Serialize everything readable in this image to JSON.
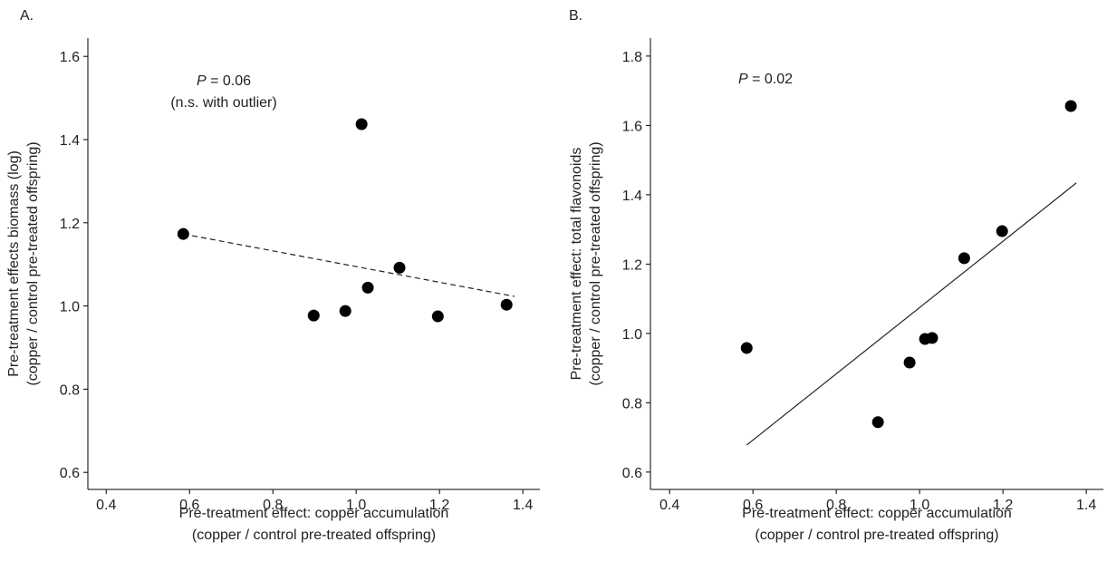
{
  "chart_data": [
    {
      "type": "scatter",
      "panel_label": "A.",
      "xlabel": [
        "Pre-treatment effect: copper accumulation",
        "(copper / control pre-treated offspring)"
      ],
      "ylabel": [
        "Pre-treatment effects biomass (log)",
        "(copper / control pre-treated offspring)"
      ],
      "annotations": [
        {
          "italic": "P",
          "text": " = 0.06"
        },
        {
          "text": "(n.s. with outlier)"
        }
      ],
      "x": [
        0.585,
        0.898,
        0.974,
        1.013,
        1.028,
        1.104,
        1.196,
        1.361
      ],
      "y": [
        1.173,
        0.977,
        0.988,
        1.437,
        1.044,
        1.092,
        0.975,
        1.003
      ],
      "color": "#000000",
      "fit_x": [
        0.585,
        1.38
      ],
      "fit_y": [
        1.173,
        1.023
      ],
      "fit_style": "dashed",
      "xlim": [
        0.356,
        1.441
      ],
      "ylim": [
        0.559,
        1.644
      ],
      "xticks": [
        0.4,
        0.6,
        0.8,
        {
          "value": 1,
          "label": "1.0"
        },
        1.2,
        1.4
      ],
      "yticks": [
        0.6,
        0.8,
        {
          "value": 1,
          "label": "1.0"
        },
        1.2,
        1.4,
        1.6
      ]
    },
    {
      "type": "scatter",
      "panel_label": "B.",
      "xlabel": [
        "Pre-treatment effect: copper accumulation",
        "(copper / control pre-treated offspring)"
      ],
      "ylabel": [
        "Pre-treatment effect: total flavonoids",
        "(copper / control pre-treated offspring)"
      ],
      "annotations": [
        {
          "italic": "P",
          "text": " = 0.02"
        }
      ],
      "x": [
        0.585,
        0.9,
        0.976,
        1.013,
        1.03,
        1.107,
        1.198,
        1.363
      ],
      "y": [
        0.958,
        0.744,
        0.916,
        0.984,
        0.987,
        1.217,
        1.295,
        1.656
      ],
      "color": "#000000",
      "fit_x": [
        0.585,
        1.376
      ],
      "fit_y": [
        0.678,
        1.434
      ],
      "fit_style": "solid",
      "xlim": [
        0.354,
        1.441
      ],
      "ylim": [
        0.55,
        1.852
      ],
      "xticks": [
        0.4,
        0.6,
        0.8,
        {
          "value": 1,
          "label": "1.0"
        },
        1.2,
        1.4
      ],
      "yticks": [
        0.6,
        0.8,
        {
          "value": 1,
          "label": "1.0"
        },
        1.2,
        1.4,
        1.6,
        1.8
      ]
    }
  ]
}
